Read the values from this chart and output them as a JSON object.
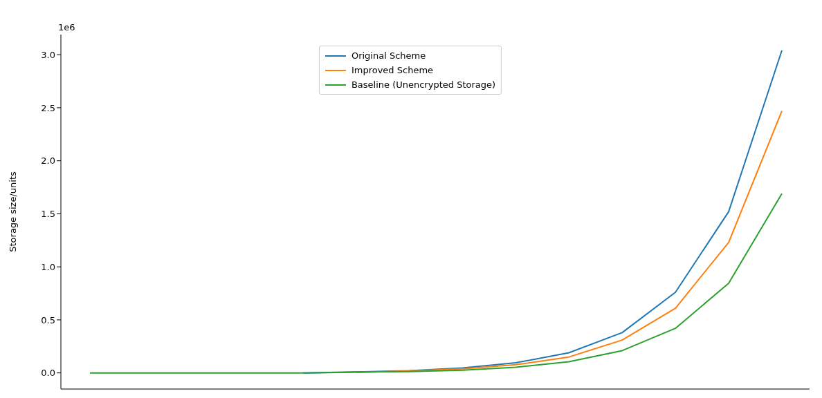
{
  "chart_data": {
    "type": "line",
    "ylabel": "Storage size/units",
    "annotations": [
      "1e6"
    ],
    "categories": [
      null,
      null,
      null,
      null,
      null,
      null,
      null,
      null,
      null,
      null,
      null,
      null,
      null,
      null
    ],
    "series": [
      {
        "name": "Original Scheme",
        "color": "#1f77b4",
        "values": [
          null,
          null,
          null,
          null,
          0,
          0.01,
          0.02,
          0.047,
          0.095,
          0.19,
          0.38,
          0.76,
          1.52,
          3.04
        ]
      },
      {
        "name": "Improved Scheme",
        "color": "#ff7f0e",
        "values": [
          null,
          null,
          null,
          null,
          null,
          0.005,
          0.019,
          0.038,
          0.077,
          0.15,
          0.31,
          0.61,
          1.23,
          2.47
        ]
      },
      {
        "name": "Baseline (Unencrypted Storage)",
        "color": "#2ca02c",
        "values": [
          0,
          0,
          0,
          0,
          0,
          0.007,
          0.013,
          0.026,
          0.053,
          0.105,
          0.21,
          0.42,
          0.845,
          1.69
        ]
      }
    ],
    "ylim": [
      -0.152,
      3.19
    ],
    "yticks": [
      {
        "value": 0,
        "label": "0.0"
      },
      0.5,
      {
        "value": 1,
        "label": "1.0"
      },
      1.5,
      {
        "value": 2,
        "label": "2.0"
      },
      2.5,
      {
        "value": 3,
        "label": "3.0"
      }
    ],
    "tick_labels": "y",
    "legend": "top",
    "marker": "none",
    "line_style": "solid"
  }
}
